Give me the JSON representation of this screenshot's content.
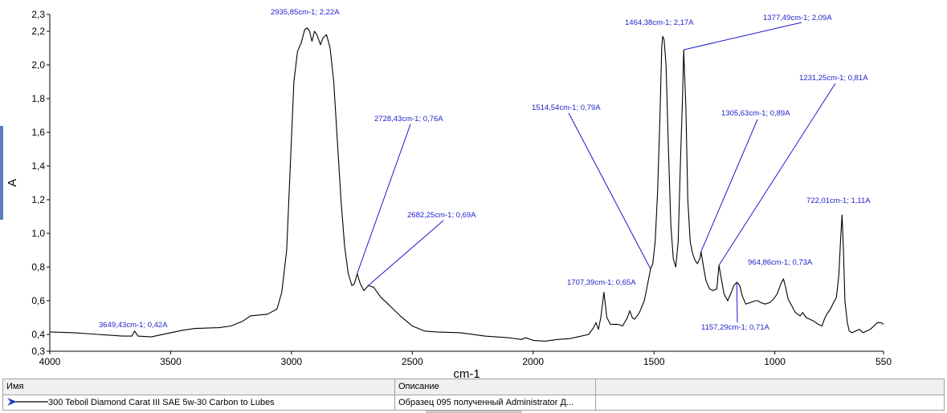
{
  "chart_data": {
    "type": "line",
    "xlabel": "cm-1",
    "ylabel": "A",
    "xlim": [
      4000,
      550
    ],
    "ylim": [
      0.3,
      2.3
    ],
    "x_ticks": [
      4000,
      3500,
      3000,
      2500,
      2000,
      1500,
      1000,
      550
    ],
    "y_ticks": [
      {
        "value": 0.3,
        "label": "0,3"
      },
      {
        "value": 0.4,
        "label": "0,4"
      },
      {
        "value": 0.6,
        "label": "0,6"
      },
      {
        "value": 0.8,
        "label": "0,8"
      },
      {
        "value": 1.0,
        "label": "1,0"
      },
      {
        "value": 1.2,
        "label": "1,2"
      },
      {
        "value": 1.4,
        "label": "1,4"
      },
      {
        "value": 1.6,
        "label": "1,6"
      },
      {
        "value": 1.8,
        "label": "1,8"
      },
      {
        "value": 2.0,
        "label": "2,0"
      },
      {
        "value": 2.2,
        "label": "2,2"
      },
      {
        "value": 2.3,
        "label": "2,3"
      }
    ],
    "grid": false,
    "series": [
      {
        "color": "#000000",
        "points": [
          [
            4000,
            0.415
          ],
          [
            3900,
            0.41
          ],
          [
            3800,
            0.4
          ],
          [
            3700,
            0.39
          ],
          [
            3660,
            0.39
          ],
          [
            3649,
            0.42
          ],
          [
            3635,
            0.39
          ],
          [
            3580,
            0.385
          ],
          [
            3500,
            0.41
          ],
          [
            3450,
            0.425
          ],
          [
            3400,
            0.435
          ],
          [
            3300,
            0.44
          ],
          [
            3250,
            0.45
          ],
          [
            3200,
            0.48
          ],
          [
            3170,
            0.51
          ],
          [
            3100,
            0.52
          ],
          [
            3060,
            0.55
          ],
          [
            3040,
            0.65
          ],
          [
            3020,
            0.9
          ],
          [
            3005,
            1.4
          ],
          [
            2990,
            1.9
          ],
          [
            2975,
            2.08
          ],
          [
            2960,
            2.13
          ],
          [
            2945,
            2.21
          ],
          [
            2935,
            2.22
          ],
          [
            2925,
            2.2
          ],
          [
            2915,
            2.14
          ],
          [
            2905,
            2.2
          ],
          [
            2895,
            2.18
          ],
          [
            2880,
            2.12
          ],
          [
            2870,
            2.16
          ],
          [
            2855,
            2.18
          ],
          [
            2840,
            2.1
          ],
          [
            2825,
            1.9
          ],
          [
            2810,
            1.55
          ],
          [
            2795,
            1.2
          ],
          [
            2780,
            0.92
          ],
          [
            2765,
            0.76
          ],
          [
            2750,
            0.69
          ],
          [
            2740,
            0.7
          ],
          [
            2728,
            0.76
          ],
          [
            2715,
            0.7
          ],
          [
            2700,
            0.66
          ],
          [
            2682,
            0.69
          ],
          [
            2660,
            0.68
          ],
          [
            2630,
            0.62
          ],
          [
            2600,
            0.58
          ],
          [
            2550,
            0.51
          ],
          [
            2500,
            0.45
          ],
          [
            2450,
            0.42
          ],
          [
            2400,
            0.415
          ],
          [
            2300,
            0.41
          ],
          [
            2200,
            0.39
          ],
          [
            2100,
            0.38
          ],
          [
            2050,
            0.37
          ],
          [
            2030,
            0.38
          ],
          [
            2000,
            0.365
          ],
          [
            1950,
            0.36
          ],
          [
            1900,
            0.37
          ],
          [
            1850,
            0.375
          ],
          [
            1800,
            0.39
          ],
          [
            1770,
            0.4
          ],
          [
            1750,
            0.44
          ],
          [
            1740,
            0.47
          ],
          [
            1730,
            0.43
          ],
          [
            1720,
            0.5
          ],
          [
            1707,
            0.65
          ],
          [
            1695,
            0.5
          ],
          [
            1680,
            0.46
          ],
          [
            1650,
            0.46
          ],
          [
            1630,
            0.45
          ],
          [
            1610,
            0.5
          ],
          [
            1600,
            0.54
          ],
          [
            1590,
            0.5
          ],
          [
            1580,
            0.49
          ],
          [
            1560,
            0.53
          ],
          [
            1540,
            0.6
          ],
          [
            1530,
            0.67
          ],
          [
            1514,
            0.79
          ],
          [
            1505,
            0.82
          ],
          [
            1495,
            0.95
          ],
          [
            1485,
            1.25
          ],
          [
            1475,
            1.7
          ],
          [
            1468,
            2.1
          ],
          [
            1464,
            2.17
          ],
          [
            1458,
            2.15
          ],
          [
            1450,
            2.0
          ],
          [
            1440,
            1.5
          ],
          [
            1430,
            1.05
          ],
          [
            1420,
            0.85
          ],
          [
            1410,
            0.8
          ],
          [
            1400,
            0.95
          ],
          [
            1390,
            1.45
          ],
          [
            1382,
            1.8
          ],
          [
            1377,
            2.09
          ],
          [
            1372,
            1.9
          ],
          [
            1368,
            1.75
          ],
          [
            1360,
            1.2
          ],
          [
            1350,
            0.95
          ],
          [
            1340,
            0.88
          ],
          [
            1330,
            0.84
          ],
          [
            1320,
            0.82
          ],
          [
            1310,
            0.85
          ],
          [
            1305,
            0.89
          ],
          [
            1295,
            0.8
          ],
          [
            1285,
            0.72
          ],
          [
            1270,
            0.67
          ],
          [
            1255,
            0.66
          ],
          [
            1240,
            0.67
          ],
          [
            1231,
            0.81
          ],
          [
            1220,
            0.72
          ],
          [
            1210,
            0.64
          ],
          [
            1195,
            0.6
          ],
          [
            1180,
            0.65
          ],
          [
            1170,
            0.69
          ],
          [
            1157,
            0.71
          ],
          [
            1145,
            0.69
          ],
          [
            1135,
            0.63
          ],
          [
            1120,
            0.58
          ],
          [
            1100,
            0.59
          ],
          [
            1080,
            0.6
          ],
          [
            1070,
            0.6
          ],
          [
            1060,
            0.59
          ],
          [
            1040,
            0.58
          ],
          [
            1020,
            0.59
          ],
          [
            1005,
            0.61
          ],
          [
            990,
            0.64
          ],
          [
            975,
            0.7
          ],
          [
            964,
            0.73
          ],
          [
            955,
            0.68
          ],
          [
            945,
            0.61
          ],
          [
            930,
            0.57
          ],
          [
            915,
            0.53
          ],
          [
            905,
            0.52
          ],
          [
            895,
            0.51
          ],
          [
            885,
            0.53
          ],
          [
            870,
            0.5
          ],
          [
            855,
            0.49
          ],
          [
            840,
            0.48
          ],
          [
            820,
            0.46
          ],
          [
            805,
            0.45
          ],
          [
            795,
            0.49
          ],
          [
            785,
            0.52
          ],
          [
            770,
            0.55
          ],
          [
            760,
            0.58
          ],
          [
            745,
            0.62
          ],
          [
            735,
            0.75
          ],
          [
            728,
            0.95
          ],
          [
            722,
            1.11
          ],
          [
            716,
            0.9
          ],
          [
            710,
            0.6
          ],
          [
            700,
            0.47
          ],
          [
            692,
            0.42
          ],
          [
            680,
            0.41
          ],
          [
            665,
            0.42
          ],
          [
            650,
            0.43
          ],
          [
            635,
            0.41
          ],
          [
            620,
            0.42
          ],
          [
            605,
            0.43
          ],
          [
            590,
            0.45
          ],
          [
            575,
            0.47
          ],
          [
            560,
            0.47
          ],
          [
            550,
            0.46
          ]
        ]
      }
    ],
    "annotations": [
      {
        "text": "3649,43cm-1; 0,42A",
        "x": 3649.43,
        "y": 0.42
      },
      {
        "text": "2935,85cm-1; 2,22A",
        "x": 2935.85,
        "y": 2.22
      },
      {
        "text": "2728,43cm-1; 0,76A",
        "x": 2728.43,
        "y": 0.76
      },
      {
        "text": "2682,25cm-1; 0,69A",
        "x": 2682.25,
        "y": 0.69
      },
      {
        "text": "1707,39cm-1; 0,65A",
        "x": 1707.39,
        "y": 0.65
      },
      {
        "text": "1514,54cm-1; 0,79A",
        "x": 1514.54,
        "y": 0.79
      },
      {
        "text": "1464,38cm-1; 2,17A",
        "x": 1464.38,
        "y": 2.17
      },
      {
        "text": "1377,49cm-1; 2,09A",
        "x": 1377.49,
        "y": 2.09
      },
      {
        "text": "1305,63cm-1; 0,89A",
        "x": 1305.63,
        "y": 0.89
      },
      {
        "text": "1231,25cm-1; 0,81A",
        "x": 1231.25,
        "y": 0.81
      },
      {
        "text": "1157,29cm-1; 0,71A",
        "x": 1157.29,
        "y": 0.71
      },
      {
        "text": "964,86cm-1; 0,73A",
        "x": 964.86,
        "y": 0.73
      },
      {
        "text": "722,01cm-1; 1,11A",
        "x": 722.01,
        "y": 1.11
      }
    ]
  },
  "legend_table": {
    "headers": {
      "name": "Имя",
      "description": "Описание"
    },
    "row": {
      "name": "300 Teboil Diamond Carat III SAE 5w-30 Carbon to Lubes",
      "description": "Образец 095 полученный Administrator Д..."
    }
  },
  "colors": {
    "line": "#000000",
    "annotation": "#2222cc",
    "leader": "#1a1acc",
    "selection_arrow": "#1f3fbf"
  }
}
